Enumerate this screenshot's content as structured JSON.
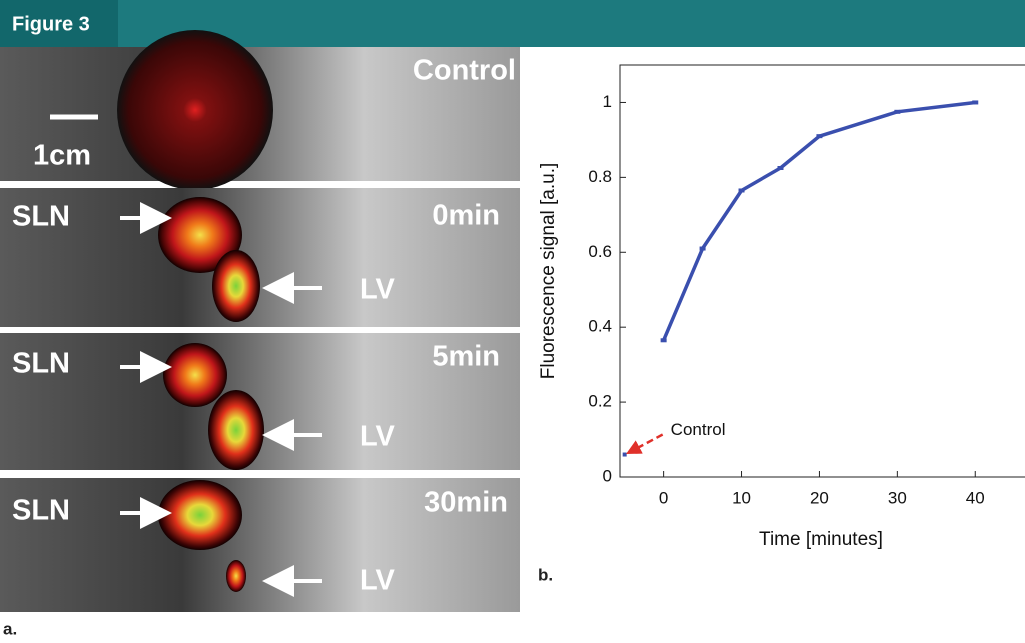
{
  "figure_label": "Figure 3",
  "panels": [
    {
      "label": "Control",
      "scale": "1cm"
    },
    {
      "label": "0min",
      "sln": "SLN",
      "lv": "LV"
    },
    {
      "label": "5min",
      "sln": "SLN",
      "lv": "LV"
    },
    {
      "label": "30min",
      "sln": "SLN",
      "lv": "LV"
    }
  ],
  "panel_label": "a.",
  "chart_label": "b.",
  "chart_data": {
    "type": "line",
    "x": [
      0,
      5,
      10,
      15,
      20,
      30,
      40
    ],
    "series": [
      {
        "color": "#3a4fae",
        "values": [
          0.365,
          0.61,
          0.765,
          0.825,
          0.91,
          0.975,
          1.0
        ]
      }
    ],
    "annotations": [
      {
        "text": "Control",
        "x": -5,
        "y": 0.06,
        "color": "#e0302a"
      }
    ],
    "xlabel": "Time [minutes]",
    "ylabel": "Fluorescence signal [a.u.]",
    "xlim": [
      -5.6,
      46
    ],
    "ylim": [
      0,
      1.1
    ],
    "xticks": [
      0,
      10,
      20,
      30,
      40
    ],
    "yticks": [
      0,
      0.2,
      0.4,
      0.6,
      0.8,
      1
    ]
  }
}
